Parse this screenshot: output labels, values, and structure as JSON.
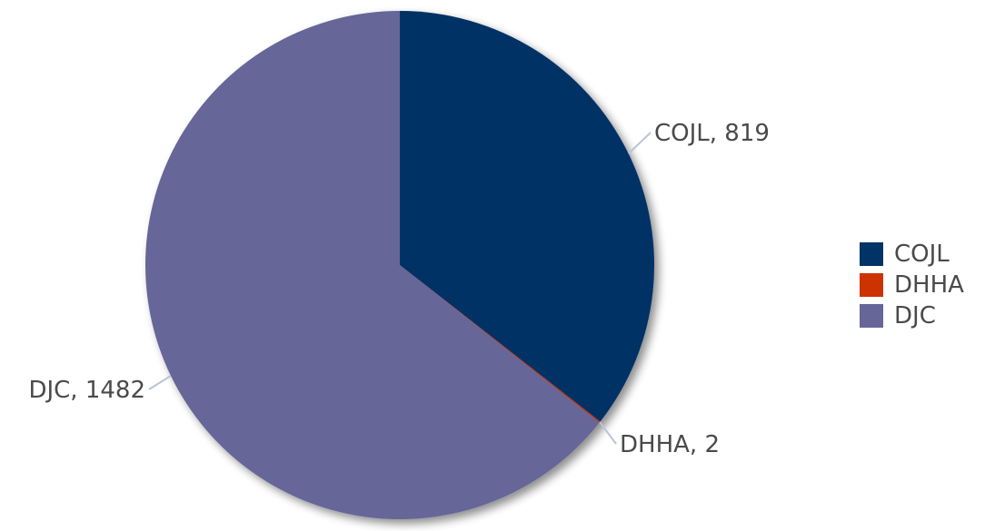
{
  "chart_data": {
    "type": "pie",
    "slices": [
      {
        "label": "COJL",
        "value": 819,
        "color": "#003366",
        "callout": "COJL, 819"
      },
      {
        "label": "DHHA",
        "value": 2,
        "color": "#cc3300",
        "callout": "DHHA, 2"
      },
      {
        "label": "DJC",
        "value": 1482,
        "color": "#666699",
        "callout": "DJC, 1482"
      }
    ],
    "legend": {
      "placement": "right",
      "entries": [
        "COJL",
        "DHHA",
        "DJC"
      ]
    }
  }
}
